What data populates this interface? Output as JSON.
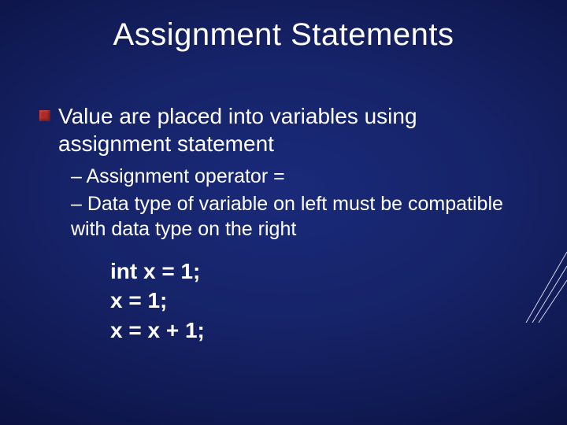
{
  "slide": {
    "title": "Assignment Statements",
    "title_fontsize": 40,
    "title_color": "#ffffff",
    "background": {
      "gradient_center": "#1a2a7a",
      "gradient_mid": "#0d1548",
      "gradient_edge": "#060a2a"
    },
    "bullet": {
      "text": "Value are placed into variables using assignment statement",
      "fontsize": 28,
      "color": "#ffffff",
      "marker_color": "#b02a2a",
      "marker_size": 14
    },
    "sub_bullets": {
      "items": [
        "– Assignment operator =",
        "– Data type of variable on left must be compatible with data type on the right"
      ],
      "fontsize": 25,
      "color": "#ffffff"
    },
    "code": {
      "lines": [
        "int x = 1;",
        "x = 1;",
        "x = x + 1;"
      ],
      "fontsize": 28,
      "font_weight": 700,
      "color": "#ffffff"
    },
    "decor": {
      "line_color": "#d4d4e8",
      "line_width": 1
    }
  }
}
